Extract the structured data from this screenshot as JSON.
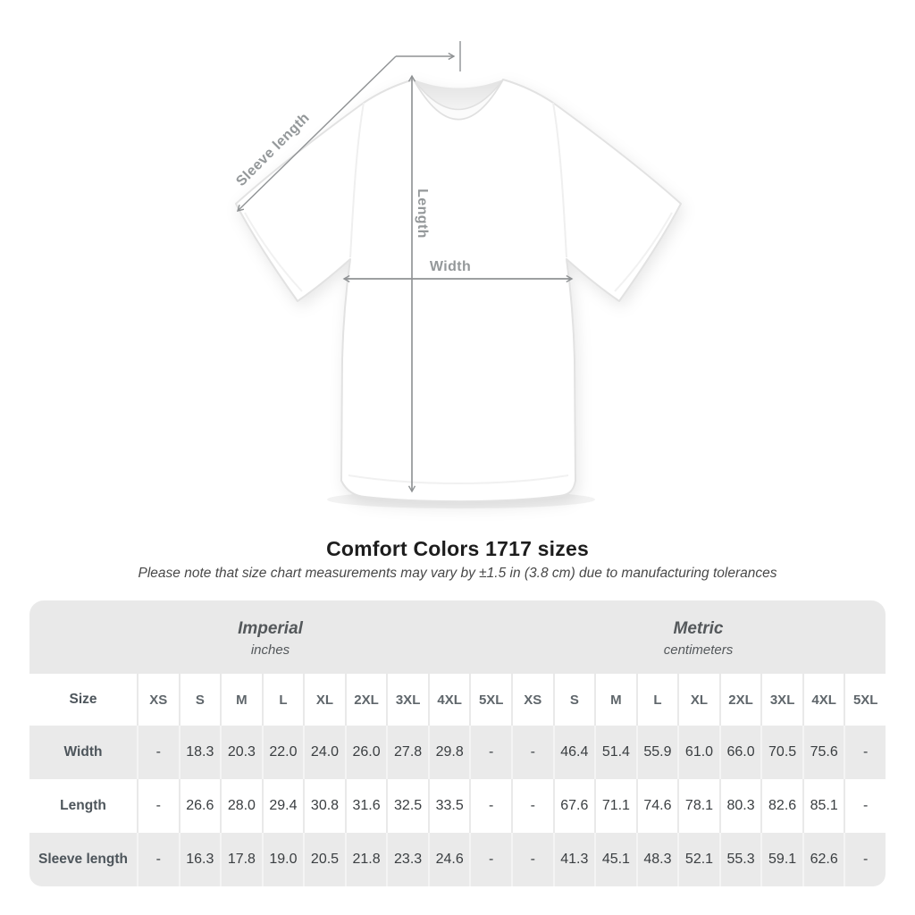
{
  "diagram": {
    "sleeve_length_label": "Sleeve length",
    "length_label": "Length",
    "width_label": "Width"
  },
  "title": "Comfort Colors 1717 sizes",
  "subtitle": "Please note that size chart measurements may vary by ±1.5 in (3.8 cm) due to manufacturing tolerances",
  "table": {
    "size_column_header": "Size",
    "groups": [
      {
        "name": "Imperial",
        "unit": "inches",
        "sizes": [
          "XS",
          "S",
          "M",
          "L",
          "XL",
          "2XL",
          "3XL",
          "4XL",
          "5XL"
        ]
      },
      {
        "name": "Metric",
        "unit": "centimeters",
        "sizes": [
          "XS",
          "S",
          "M",
          "L",
          "XL",
          "2XL",
          "3XL",
          "4XL",
          "5XL"
        ]
      }
    ],
    "rows": [
      {
        "label": "Width",
        "imperial": [
          "-",
          "18.3",
          "20.3",
          "22.0",
          "24.0",
          "26.0",
          "27.8",
          "29.8",
          "-"
        ],
        "metric": [
          "-",
          "46.4",
          "51.4",
          "55.9",
          "61.0",
          "66.0",
          "70.5",
          "75.6",
          "-"
        ]
      },
      {
        "label": "Length",
        "imperial": [
          "-",
          "26.6",
          "28.0",
          "29.4",
          "30.8",
          "31.6",
          "32.5",
          "33.5",
          "-"
        ],
        "metric": [
          "-",
          "67.6",
          "71.1",
          "74.6",
          "78.1",
          "80.3",
          "82.6",
          "85.1",
          "-"
        ]
      },
      {
        "label": "Sleeve length",
        "imperial": [
          "-",
          "16.3",
          "17.8",
          "19.0",
          "20.5",
          "21.8",
          "23.3",
          "24.6",
          "-"
        ],
        "metric": [
          "-",
          "41.3",
          "45.1",
          "48.3",
          "52.1",
          "55.3",
          "59.1",
          "62.6",
          "-"
        ]
      }
    ]
  },
  "colors": {
    "annotation_gray": "#8f9294",
    "label_gray": "#94989a",
    "band_bg": "#e9e9e9",
    "row_alt_bg": "#eaeaea",
    "title_text": "#1d1d1d",
    "cell_text": "#3a3e41"
  }
}
